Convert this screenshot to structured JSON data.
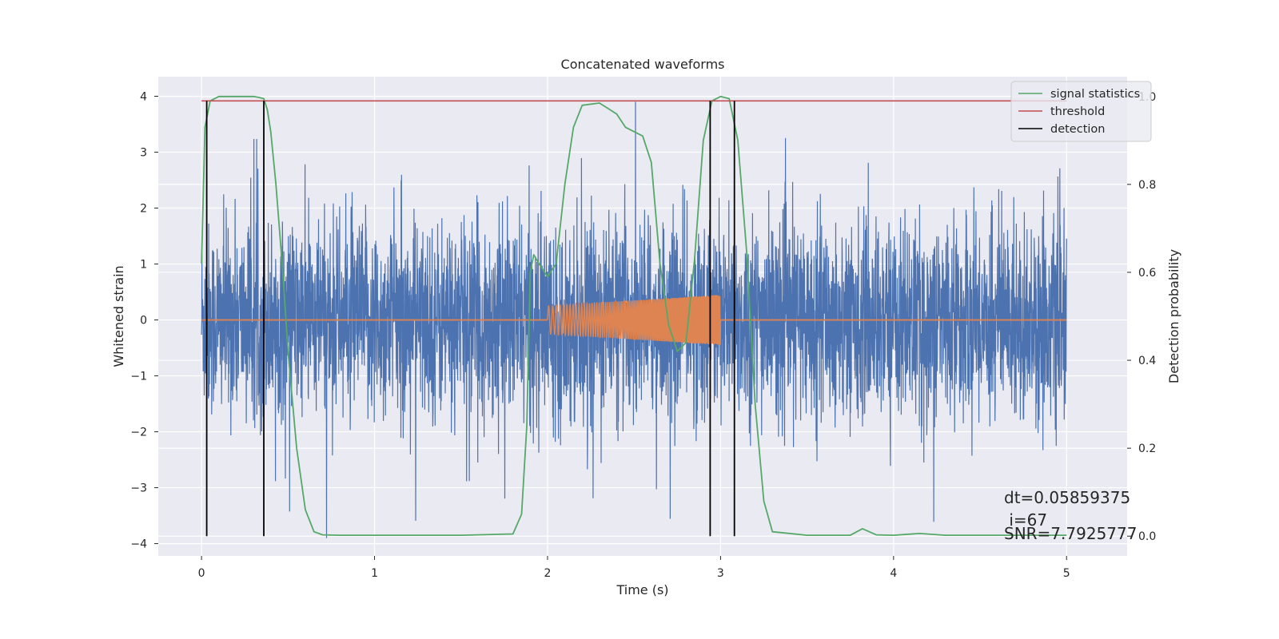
{
  "chart_data": {
    "type": "line",
    "title": "Concatenated waveforms",
    "xlabel": "Time (s)",
    "ylabel": "Whitened strain",
    "ylabel_right": "Detection probability",
    "xlim": [
      -0.25,
      5.35
    ],
    "ylim": [
      -4.22,
      4.35
    ],
    "ylim_right": [
      -0.045,
      1.045
    ],
    "x_ticks": [
      0,
      1,
      2,
      3,
      4,
      5
    ],
    "y_ticks": [
      4,
      3,
      2,
      1,
      0,
      -1,
      -2,
      -3,
      -4
    ],
    "y_ticks_right": [
      1.0,
      0.8,
      0.6,
      0.4,
      0.2,
      0.0
    ],
    "y_tick_labels": [
      "4",
      "3",
      "2",
      "1",
      "0",
      "−1",
      "−2",
      "−3",
      "−4"
    ],
    "y_tick_labels_right": [
      "1.0",
      "0.8",
      "0.6",
      "0.4",
      "0.2",
      "0.0"
    ],
    "grid": true,
    "legend_position": "top-right",
    "series": [
      {
        "name": "",
        "color": "#4c72b0",
        "axis": "left",
        "kind": "whitened_strain_noise",
        "x_range": [
          0,
          5
        ],
        "approx_amplitude": 2.4
      },
      {
        "name": "",
        "color": "#dd8452",
        "axis": "left",
        "kind": "injected_chirp",
        "x_range": [
          2.0,
          3.0
        ],
        "amplitude_start": 0.25,
        "amplitude_end": 0.45
      },
      {
        "name": "signal statistics",
        "color": "#55a868",
        "axis": "right",
        "x": [
          0.0,
          0.02,
          0.05,
          0.1,
          0.15,
          0.2,
          0.25,
          0.3,
          0.33,
          0.36,
          0.38,
          0.4,
          0.43,
          0.47,
          0.5,
          0.55,
          0.6,
          0.65,
          0.7,
          0.8,
          1.0,
          1.5,
          1.8,
          1.85,
          1.88,
          1.9,
          1.92,
          1.95,
          2.0,
          2.05,
          2.1,
          2.15,
          2.2,
          2.3,
          2.4,
          2.45,
          2.5,
          2.55,
          2.6,
          2.65,
          2.7,
          2.75,
          2.8,
          2.85,
          2.9,
          2.95,
          3.0,
          3.05,
          3.1,
          3.15,
          3.2,
          3.25,
          3.3,
          3.5,
          3.75,
          3.82,
          3.9,
          4.0,
          4.15,
          4.3,
          4.5,
          5.0
        ],
        "y": [
          0.62,
          0.93,
          0.99,
          1.0,
          1.0,
          1.0,
          1.0,
          1.0,
          0.998,
          0.995,
          0.97,
          0.92,
          0.8,
          0.6,
          0.42,
          0.2,
          0.06,
          0.01,
          0.003,
          0.002,
          0.002,
          0.002,
          0.005,
          0.05,
          0.25,
          0.6,
          0.64,
          0.62,
          0.59,
          0.62,
          0.8,
          0.93,
          0.98,
          0.985,
          0.96,
          0.93,
          0.92,
          0.91,
          0.85,
          0.62,
          0.48,
          0.42,
          0.44,
          0.63,
          0.9,
          0.99,
          1.0,
          0.995,
          0.9,
          0.65,
          0.3,
          0.08,
          0.01,
          0.002,
          0.002,
          0.017,
          0.003,
          0.002,
          0.006,
          0.002,
          0.002,
          0.002
        ]
      },
      {
        "name": "threshold",
        "color": "#c44e52",
        "axis": "right",
        "y": 0.99
      },
      {
        "name": "detection",
        "color": "#000000",
        "axis": "right",
        "x": [
          0.03,
          0.36,
          2.94,
          3.08
        ],
        "y_range": [
          0.0,
          0.99
        ]
      }
    ],
    "annotations": [
      "dt=0.05859375",
      " i=67",
      "SNR=7.7925777"
    ]
  }
}
